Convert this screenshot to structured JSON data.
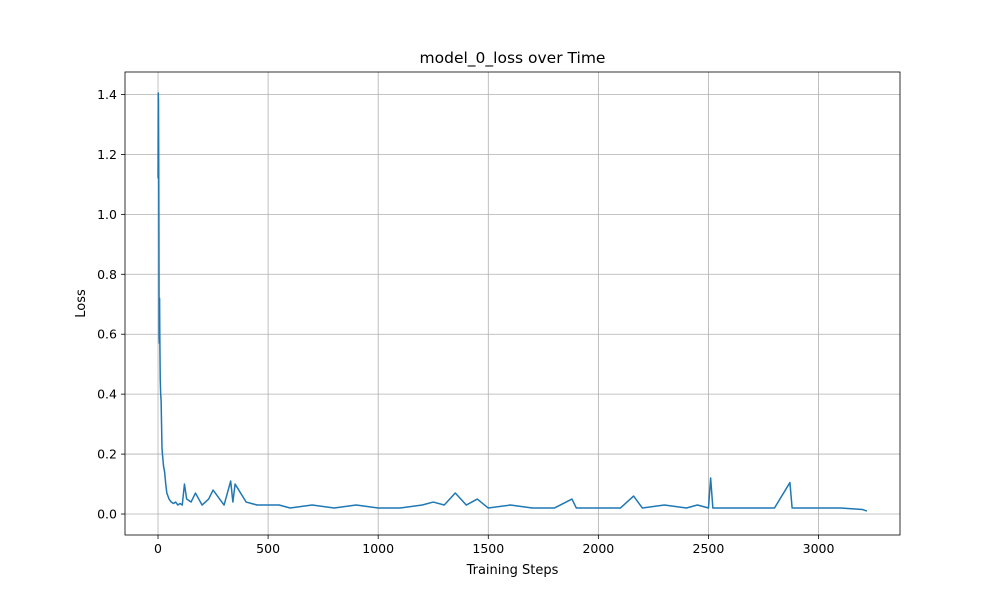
{
  "chart_data": {
    "type": "line",
    "title": "model_0_loss over Time",
    "xlabel": "Training Steps",
    "ylabel": "Loss",
    "xlim": [
      -150,
      3370
    ],
    "ylim": [
      -0.07,
      1.475
    ],
    "xticks": [
      0,
      500,
      1000,
      1500,
      2000,
      2500,
      3000
    ],
    "xtick_labels": [
      "0",
      "500",
      "1000",
      "1500",
      "2000",
      "2500",
      "3000"
    ],
    "yticks": [
      0.0,
      0.2,
      0.4,
      0.6,
      0.8,
      1.0,
      1.2,
      1.4
    ],
    "ytick_labels": [
      "0.0",
      "0.2",
      "0.4",
      "0.6",
      "0.8",
      "1.0",
      "1.2",
      "1.4"
    ],
    "grid": true,
    "line_color": "#1f77b4",
    "series": [
      {
        "x": [
          0,
          1,
          2,
          3,
          4,
          5,
          6,
          7,
          8,
          10,
          12,
          14,
          16,
          18,
          20,
          25,
          30,
          35,
          40,
          50,
          60,
          70,
          80,
          90,
          100,
          110,
          120,
          130,
          150,
          170,
          200,
          230,
          250,
          300,
          330,
          340,
          350,
          400,
          450,
          500,
          550,
          600,
          700,
          800,
          900,
          1000,
          1100,
          1200,
          1250,
          1300,
          1350,
          1400,
          1450,
          1500,
          1600,
          1700,
          1800,
          1880,
          1900,
          2000,
          2100,
          2160,
          2200,
          2300,
          2400,
          2450,
          2500,
          2510,
          2520,
          2600,
          2700,
          2800,
          2870,
          2880,
          2900,
          3000,
          3100,
          3200,
          3220
        ],
        "y": [
          1.12,
          1.405,
          1.38,
          1.2,
          0.95,
          0.6,
          0.57,
          0.72,
          0.6,
          0.45,
          0.4,
          0.38,
          0.3,
          0.22,
          0.2,
          0.16,
          0.14,
          0.1,
          0.07,
          0.05,
          0.04,
          0.035,
          0.04,
          0.03,
          0.035,
          0.03,
          0.1,
          0.05,
          0.04,
          0.07,
          0.03,
          0.05,
          0.08,
          0.03,
          0.11,
          0.04,
          0.1,
          0.04,
          0.03,
          0.03,
          0.03,
          0.02,
          0.03,
          0.02,
          0.03,
          0.02,
          0.02,
          0.03,
          0.04,
          0.03,
          0.07,
          0.03,
          0.05,
          0.02,
          0.03,
          0.02,
          0.02,
          0.05,
          0.02,
          0.02,
          0.02,
          0.06,
          0.02,
          0.03,
          0.02,
          0.03,
          0.02,
          0.12,
          0.02,
          0.02,
          0.02,
          0.02,
          0.105,
          0.02,
          0.02,
          0.02,
          0.02,
          0.015,
          0.01
        ]
      }
    ]
  }
}
